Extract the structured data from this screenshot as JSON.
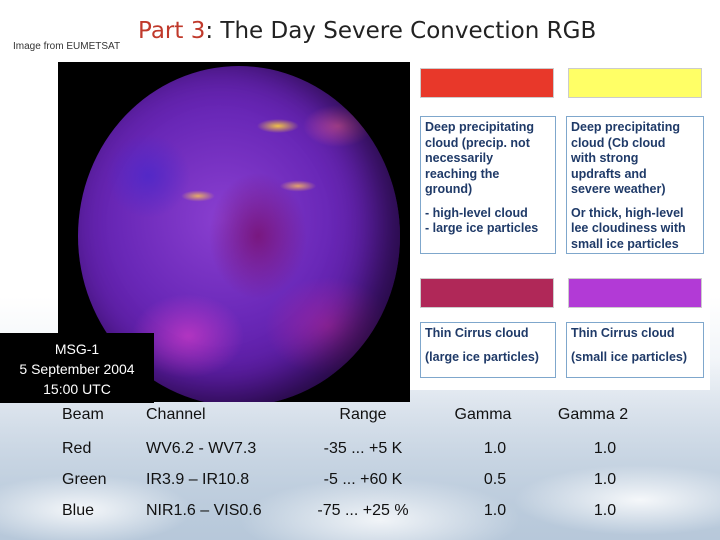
{
  "credit": "Image from EUMETSAT",
  "title": {
    "part": "Part 3",
    "rest": ": The Day Severe Convection RGB"
  },
  "satellite": {
    "label_lines": [
      "MSG-1",
      "5 September 2004",
      "15:00 UTC"
    ]
  },
  "legend": {
    "colors": {
      "red": "#e8382a",
      "yellow": "#ffff66",
      "crimson": "#b02858",
      "violet": "#b23ad6"
    },
    "boxes": [
      {
        "lines_a": [
          "Deep precipitating",
          " cloud (precip. not",
          "necessarily",
          "reaching the",
          "ground)"
        ],
        "lines_b": [
          "- high-level cloud",
          "- large ice particles"
        ]
      },
      {
        "lines_a": [
          "Deep precipitating",
          "cloud (Cb cloud",
          "with strong",
          "updrafts and",
          "severe weather)"
        ],
        "lines_b": [
          "Or thick, high-level",
          "lee cloudiness with",
          "small ice particles"
        ]
      },
      {
        "lines_a": [
          "Thin Cirrus cloud"
        ],
        "lines_b": [
          "(large ice particles)"
        ]
      },
      {
        "lines_a": [
          "Thin Cirrus cloud"
        ],
        "lines_b": [
          "(small ice particles)"
        ]
      }
    ]
  },
  "table": {
    "headers": [
      "Beam",
      "Channel",
      "Range",
      "Gamma",
      "Gamma 2"
    ],
    "rows": [
      [
        "Red",
        "WV6.2 - WV7.3",
        "-35 ... +5 K",
        "1.0",
        "1.0"
      ],
      [
        "Green",
        "IR3.9 – IR10.8",
        "-5 ... +60 K",
        "0.5",
        "1.0"
      ],
      [
        "Blue",
        "NIR1.6 – VIS0.6",
        "-75 ... +25 %",
        "1.0",
        "1.0"
      ]
    ]
  }
}
